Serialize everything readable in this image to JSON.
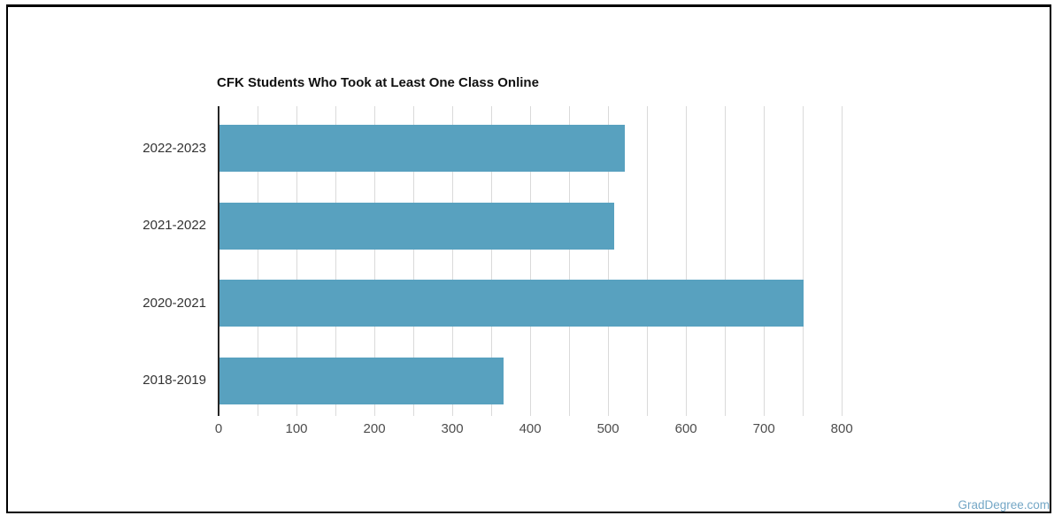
{
  "frame": {
    "border_color": "#000000",
    "background": "#ffffff"
  },
  "watermark": {
    "text": "GradDegree.com",
    "color": "#74a7c6"
  },
  "chart_data": {
    "type": "bar",
    "orientation": "horizontal",
    "title": "CFK Students Who Took at Least One Class Online",
    "categories": [
      "2022-2023",
      "2021-2022",
      "2020-2021",
      "2018-2019"
    ],
    "values": [
      522,
      508,
      751,
      366
    ],
    "xlim": [
      0,
      810
    ],
    "x_tick_interval": 100,
    "x_gridline_interval": 50,
    "x_tick_labels": [
      "0",
      "100",
      "200",
      "300",
      "400",
      "500",
      "600",
      "700",
      "800"
    ],
    "bar_color": "#58a1bf",
    "gridline_color": "#dadada",
    "axis_line_color": "#262626",
    "title_color": "#111111",
    "category_label_color": "#333333",
    "tick_label_color": "#4d4d4d",
    "legend": "none",
    "grid": "vertical"
  }
}
